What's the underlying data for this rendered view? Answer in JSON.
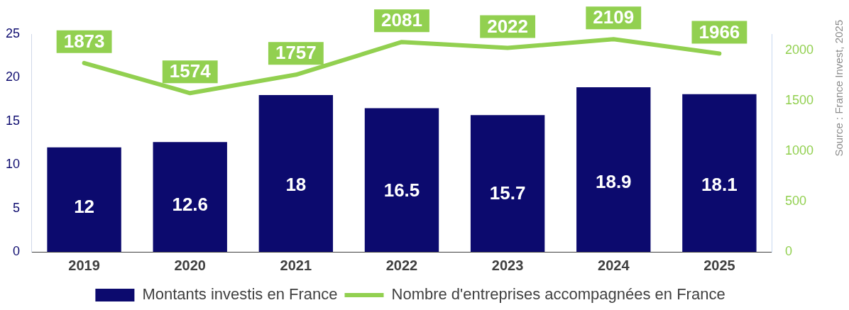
{
  "chart_data": {
    "type": "bar",
    "categories": [
      "2019",
      "2020",
      "2021",
      "2022",
      "2023",
      "2024",
      "2025"
    ],
    "series": [
      {
        "name": "Montants investis en France",
        "color": "#0c0a6e",
        "values": [
          12,
          12.6,
          18,
          16.5,
          15.7,
          18.9,
          18.1
        ]
      },
      {
        "name": "Nombre d'entreprises accompagnées en France",
        "type": "line",
        "axis": "y2",
        "color": "#92d050",
        "values": [
          1873,
          1574,
          1757,
          2081,
          2022,
          2109,
          1966
        ]
      }
    ],
    "ylim": [
      0,
      25
    ],
    "yticks": [
      0,
      5,
      10,
      15,
      20,
      25
    ],
    "y2lim": [
      0,
      2160
    ],
    "y2ticks": [
      0,
      500,
      1000,
      1500,
      2000
    ],
    "data_labels": true,
    "grid": false,
    "legend": "bottom",
    "marker": "none",
    "annotations": [
      "Source : France Invest, 2025"
    ]
  }
}
